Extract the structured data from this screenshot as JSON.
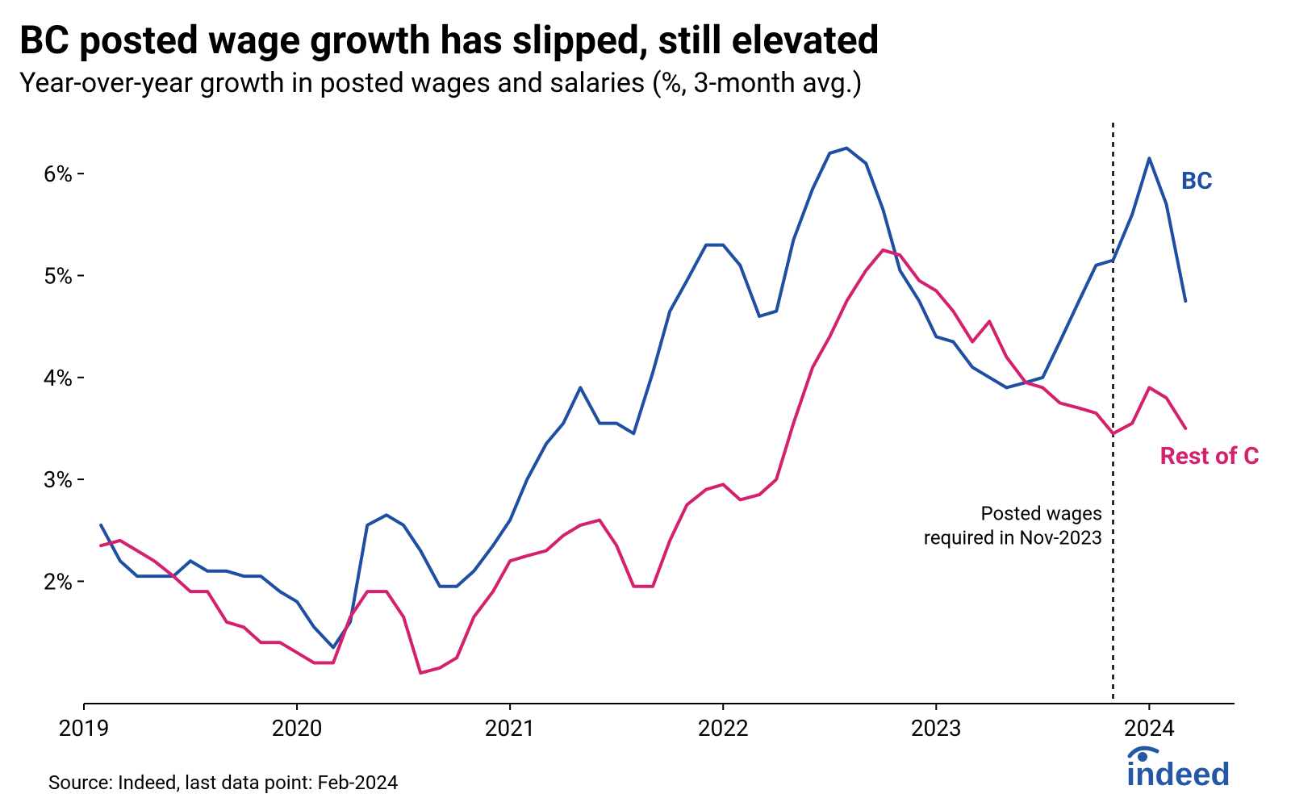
{
  "title": "BC posted wage growth has slipped, still elevated",
  "subtitle": "Year-over-year growth in posted wages and salaries (%, 3-month avg.)",
  "source": "Source: Indeed, last data point: Feb-2024",
  "chart": {
    "type": "line",
    "background_color": "#ffffff",
    "axis_line_color": "#000000",
    "text_color": "#000000",
    "axis_font_size": 28,
    "line_width": 4,
    "x": {
      "min": 2019.0,
      "max": 2024.4,
      "ticks": [
        2019,
        2020,
        2021,
        2022,
        2023,
        2024
      ],
      "tick_labels": [
        "2019",
        "2020",
        "2021",
        "2022",
        "2023",
        "2024"
      ]
    },
    "y": {
      "min": 0.8,
      "max": 6.5,
      "ticks": [
        2,
        3,
        4,
        5,
        6
      ],
      "tick_labels": [
        "2%",
        "3%",
        "4%",
        "5%",
        "6%"
      ]
    },
    "vline": {
      "x": 2023.83,
      "color": "#000000",
      "dash": "6 6"
    },
    "series": [
      {
        "name": "BC",
        "label": "BC",
        "color": "#1f4fa3",
        "label_x": 2024.15,
        "label_y": 5.85,
        "x": [
          2019.08,
          2019.17,
          2019.25,
          2019.33,
          2019.42,
          2019.5,
          2019.58,
          2019.67,
          2019.75,
          2019.83,
          2019.92,
          2020.0,
          2020.08,
          2020.17,
          2020.25,
          2020.33,
          2020.42,
          2020.5,
          2020.58,
          2020.67,
          2020.75,
          2020.83,
          2020.92,
          2021.0,
          2021.08,
          2021.17,
          2021.25,
          2021.33,
          2021.42,
          2021.5,
          2021.58,
          2021.67,
          2021.75,
          2021.83,
          2021.92,
          2022.0,
          2022.08,
          2022.17,
          2022.25,
          2022.33,
          2022.42,
          2022.5,
          2022.58,
          2022.67,
          2022.75,
          2022.83,
          2022.92,
          2023.0,
          2023.08,
          2023.17,
          2023.25,
          2023.33,
          2023.42,
          2023.5,
          2023.58,
          2023.67,
          2023.75,
          2023.83,
          2023.92,
          2024.0,
          2024.08,
          2024.17
        ],
        "y": [
          2.55,
          2.2,
          2.05,
          2.05,
          2.05,
          2.2,
          2.1,
          2.1,
          2.05,
          2.05,
          1.9,
          1.8,
          1.55,
          1.35,
          1.6,
          2.55,
          2.65,
          2.55,
          2.3,
          1.95,
          1.95,
          2.1,
          2.35,
          2.6,
          3.0,
          3.35,
          3.55,
          3.9,
          3.55,
          3.55,
          3.45,
          4.05,
          4.65,
          4.95,
          5.3,
          5.3,
          5.1,
          4.6,
          4.65,
          5.35,
          5.85,
          6.2,
          6.25,
          6.1,
          5.65,
          5.05,
          4.75,
          4.4,
          4.35,
          4.1,
          4.0,
          3.9,
          3.95,
          4.0,
          4.35,
          4.75,
          5.1,
          5.15,
          5.6,
          6.15,
          5.7,
          4.75
        ]
      },
      {
        "name": "Rest of Canada",
        "label": "Rest of Canada",
        "color": "#d4216e",
        "label_x": 2024.05,
        "label_y": 3.15,
        "x": [
          2019.08,
          2019.17,
          2019.25,
          2019.33,
          2019.42,
          2019.5,
          2019.58,
          2019.67,
          2019.75,
          2019.83,
          2019.92,
          2020.0,
          2020.08,
          2020.17,
          2020.25,
          2020.33,
          2020.42,
          2020.5,
          2020.58,
          2020.67,
          2020.75,
          2020.83,
          2020.92,
          2021.0,
          2021.08,
          2021.17,
          2021.25,
          2021.33,
          2021.42,
          2021.5,
          2021.58,
          2021.67,
          2021.75,
          2021.83,
          2021.92,
          2022.0,
          2022.08,
          2022.17,
          2022.25,
          2022.33,
          2022.42,
          2022.5,
          2022.58,
          2022.67,
          2022.75,
          2022.83,
          2022.92,
          2023.0,
          2023.08,
          2023.17,
          2023.25,
          2023.33,
          2023.42,
          2023.5,
          2023.58,
          2023.67,
          2023.75,
          2023.83,
          2023.92,
          2024.0,
          2024.08,
          2024.17
        ],
        "y": [
          2.35,
          2.4,
          2.3,
          2.2,
          2.05,
          1.9,
          1.9,
          1.6,
          1.55,
          1.4,
          1.4,
          1.3,
          1.2,
          1.2,
          1.65,
          1.9,
          1.9,
          1.65,
          1.1,
          1.15,
          1.25,
          1.65,
          1.9,
          2.2,
          2.25,
          2.3,
          2.45,
          2.55,
          2.6,
          2.35,
          1.95,
          1.95,
          2.4,
          2.75,
          2.9,
          2.95,
          2.8,
          2.85,
          3.0,
          3.55,
          4.1,
          4.4,
          4.75,
          5.05,
          5.25,
          5.2,
          4.95,
          4.85,
          4.65,
          4.35,
          4.55,
          4.2,
          3.95,
          3.9,
          3.75,
          3.7,
          3.65,
          3.45,
          3.55,
          3.9,
          3.8,
          3.5
        ]
      }
    ],
    "annotation": {
      "lines": [
        "Posted wages",
        "required in Nov-2023"
      ],
      "x": 2023.78,
      "y_top": 2.6,
      "font_size": 24,
      "color": "#000000"
    }
  },
  "logo": {
    "color": "#2557a7",
    "text": "indeed"
  }
}
